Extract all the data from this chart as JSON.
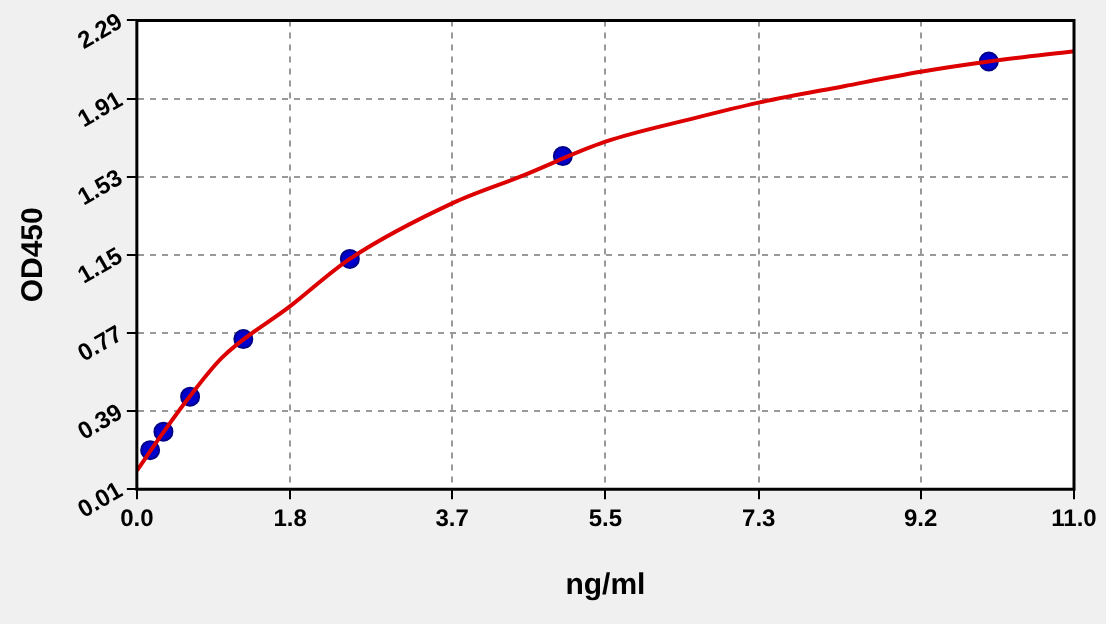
{
  "chart_data": {
    "type": "scatter",
    "xlabel": "ng/ml",
    "ylabel": "OD450",
    "xlim": [
      0,
      11.0
    ],
    "xticks": [
      {
        "value": 0,
        "label": "0.0"
      },
      1.8,
      3.7,
      5.5,
      7.3,
      9.2,
      {
        "value": 11,
        "label": "11.0"
      }
    ],
    "ylim": [
      0.01,
      2.29
    ],
    "yticks": [
      0.01,
      0.39,
      0.77,
      1.15,
      1.53,
      1.91,
      2.29
    ],
    "grid": true,
    "legend": false,
    "series": [
      {
        "type": "line",
        "color": "#dd0000",
        "marker": "none",
        "line_style": "solid",
        "x": [
          0,
          0.3,
          0.6,
          1.0,
          1.8,
          2.5,
          3.7,
          4.5,
          5.5,
          6.5,
          7.3,
          8.3,
          9.2,
          10,
          11
        ],
        "values": [
          0.1,
          0.28,
          0.45,
          0.65,
          0.9,
          1.13,
          1.4,
          1.53,
          1.7,
          1.81,
          1.89,
          1.97,
          2.04,
          2.09,
          2.14
        ]
      },
      {
        "color": "#0000cc",
        "marker": "circle",
        "x": [
          0.156,
          0.312,
          0.625,
          1.25,
          2.5,
          5,
          10
        ],
        "values": [
          0.2,
          0.29,
          0.46,
          0.74,
          1.13,
          1.63,
          2.09
        ]
      }
    ]
  }
}
